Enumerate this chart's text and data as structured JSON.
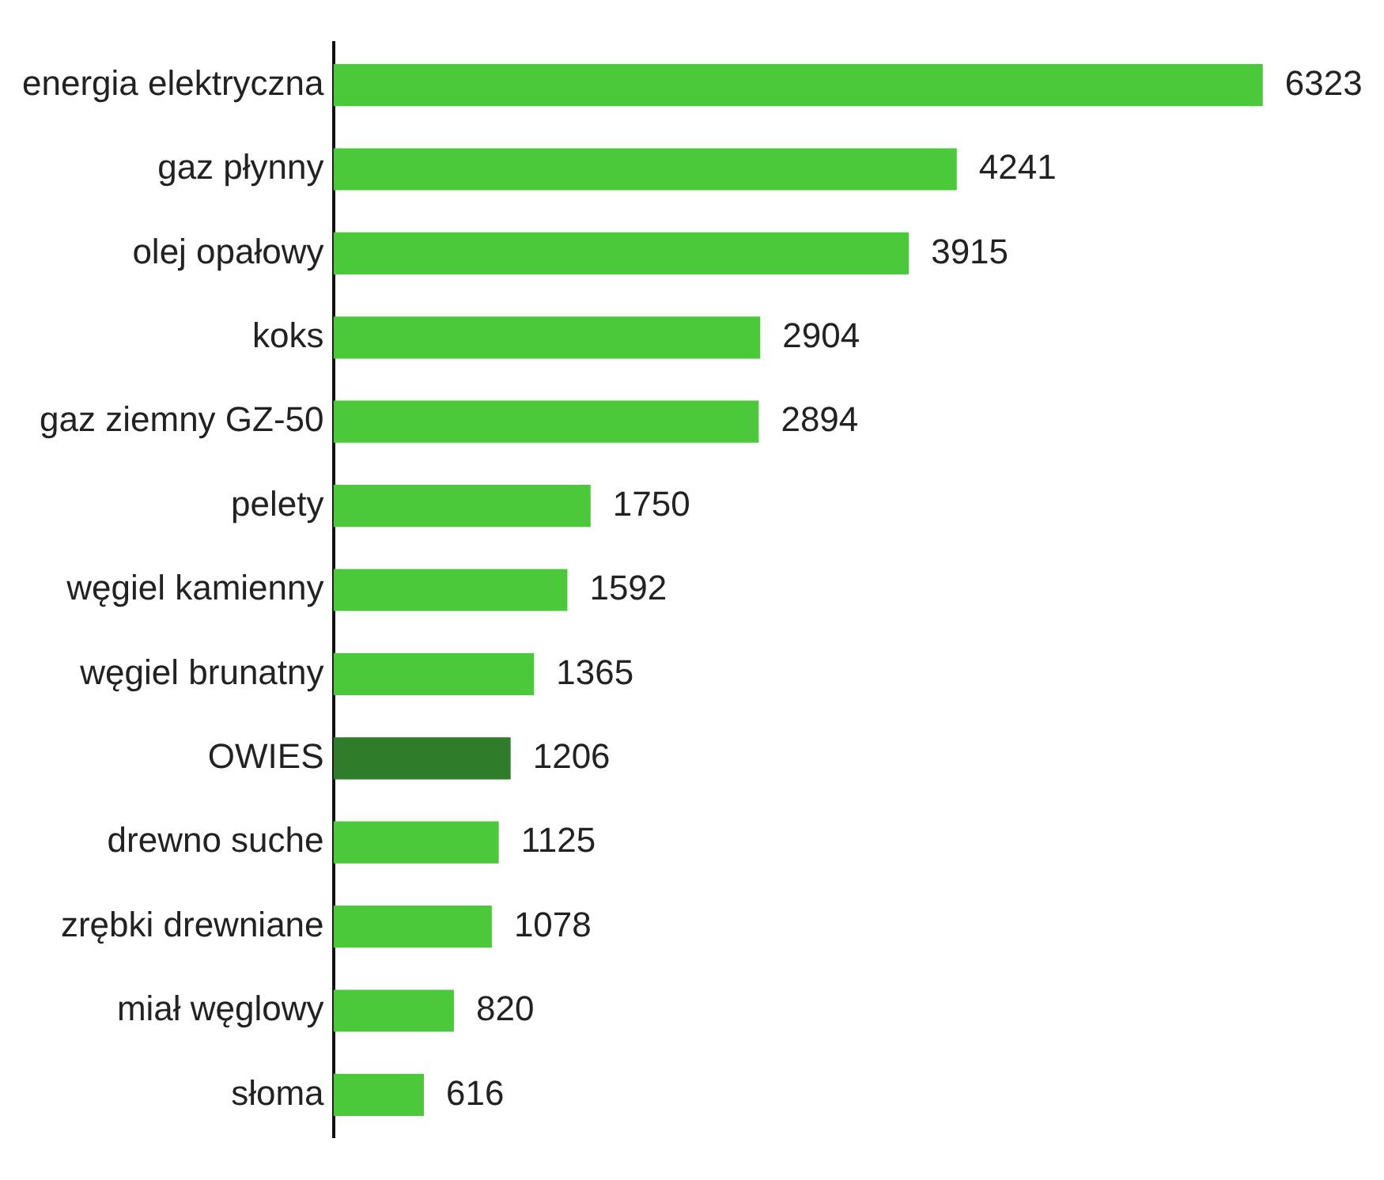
{
  "chart_data": {
    "type": "bar",
    "orientation": "horizontal",
    "categories": [
      "energia elektryczna",
      "gaz płynny",
      "olej opałowy",
      "koks",
      "gaz ziemny GZ-50",
      "pelety",
      "węgiel kamienny",
      "węgiel brunatny",
      "OWIES",
      "drewno suche",
      "zrębki drewniane",
      "miał węglowy",
      "słoma"
    ],
    "values": [
      6323,
      4241,
      3915,
      2904,
      2894,
      1750,
      1592,
      1365,
      1206,
      1125,
      1078,
      820,
      616
    ],
    "colors": [
      "#4cc93a",
      "#4cc93a",
      "#4cc93a",
      "#4cc93a",
      "#4cc93a",
      "#4cc93a",
      "#4cc93a",
      "#4cc93a",
      "#2f7d2b",
      "#4cc93a",
      "#4cc93a",
      "#4cc93a",
      "#4cc93a"
    ],
    "data_labels": true,
    "legend": false
  }
}
